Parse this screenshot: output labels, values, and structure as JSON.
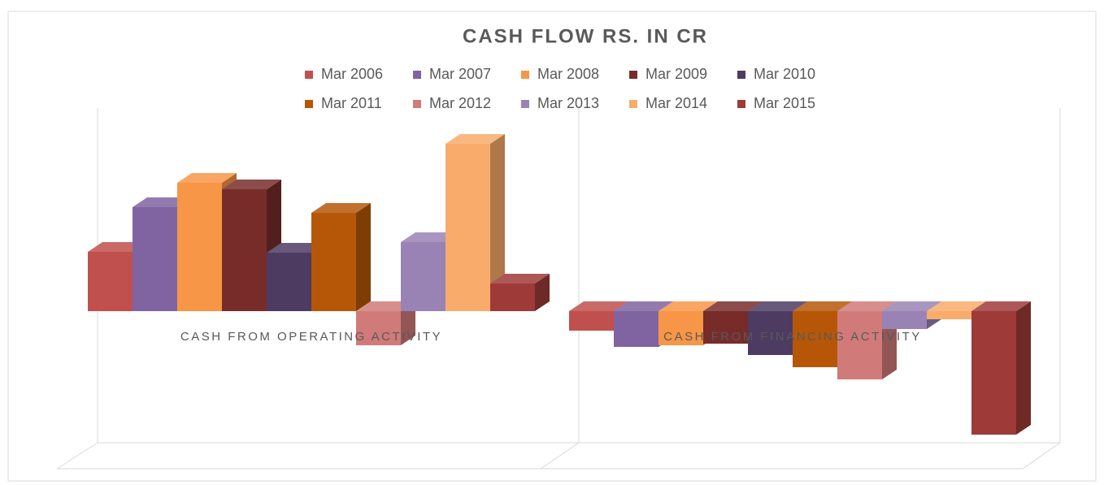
{
  "chart_data": {
    "type": "bar3d",
    "title": "CASH FLOW RS. IN CR",
    "categories": [
      "CASH FROM OPERATING ACTIVITY",
      "CASH FROM FINANCING ACTIVITY"
    ],
    "series": [
      {
        "name": "Mar 2006",
        "color": "#c0504d",
        "values": [
          73,
          -24
        ]
      },
      {
        "name": "Mar 2007",
        "color": "#8064a2",
        "values": [
          128,
          -44
        ]
      },
      {
        "name": "Mar 2008",
        "color": "#f79646",
        "values": [
          158,
          -42
        ]
      },
      {
        "name": "Mar 2009",
        "color": "#772c2a",
        "values": [
          150,
          -40
        ]
      },
      {
        "name": "Mar 2010",
        "color": "#4d3b62",
        "values": [
          72,
          -54
        ]
      },
      {
        "name": "Mar 2011",
        "color": "#b65708",
        "values": [
          121,
          -69
        ]
      },
      {
        "name": "Mar 2012",
        "color": "#d07b79",
        "values": [
          -42,
          -84
        ]
      },
      {
        "name": "Mar 2013",
        "color": "#9983b5",
        "values": [
          85,
          -22
        ]
      },
      {
        "name": "Mar 2014",
        "color": "#f9ab6b",
        "values": [
          206,
          -10
        ]
      },
      {
        "name": "Mar 2015",
        "color": "#9e3a38",
        "values": [
          34,
          -152
        ]
      }
    ],
    "ylim": [
      -160,
      210
    ]
  }
}
